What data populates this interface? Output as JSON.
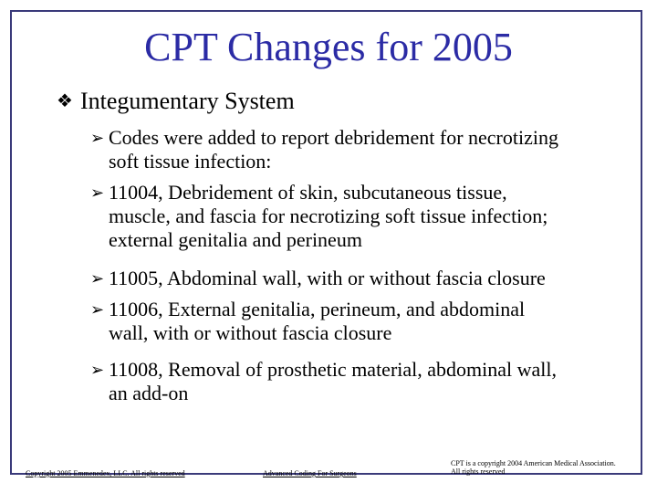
{
  "slide": {
    "title": "CPT Changes for 2005",
    "heading": {
      "bullet_icon": "diamond-bullet-icon",
      "label": "Integumentary System"
    },
    "items": [
      {
        "first": "Codes were added to report debridement for necrotizing",
        "rest": [
          "soft tissue infection:"
        ]
      },
      {
        "first": "11004, Debridement of skin, subcutaneous tissue,",
        "rest": [
          "muscle, and fascia for necrotizing soft tissue infection;",
          "external genitalia and perineum"
        ]
      },
      {
        "first": "11005, Abdominal wall, with or without fascia closure",
        "rest": []
      },
      {
        "first": "11006, External genitalia, perineum, and abdominal",
        "rest": [
          "wall, with or without fascia closure"
        ]
      },
      {
        "first": "11008, Removal of prosthetic material, abdominal wall,",
        "rest": [
          "an add-on"
        ]
      }
    ],
    "footer": {
      "left": "Copyright 2005 Emmenedex, LLC. All rights reserved",
      "center": "Advanced Coding For Surgeons",
      "right_line1": "CPT is a copyright 2004 American Medical Association.",
      "right_line2": "All rights reserved"
    },
    "colors": {
      "title": "#2b2ba5",
      "border": "#3a3a7a"
    }
  }
}
